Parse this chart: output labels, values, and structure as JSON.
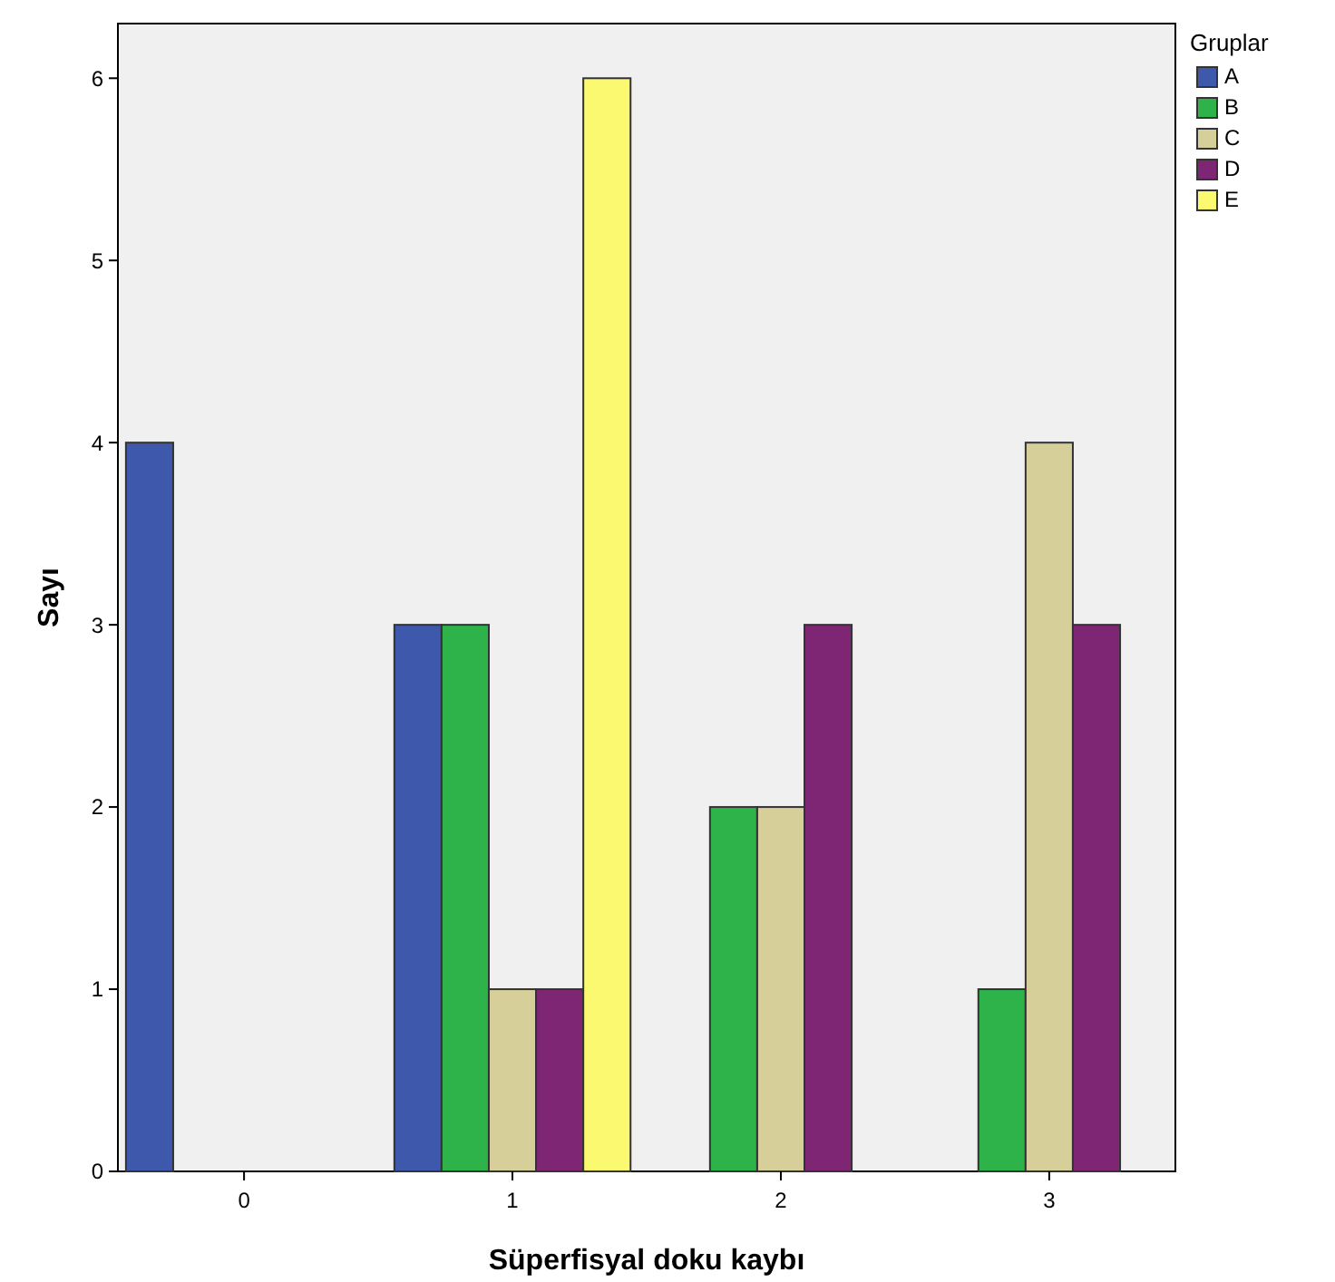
{
  "chart_data": {
    "type": "bar",
    "xlabel": "Süperfisyal doku kaybı",
    "ylabel": "Sayı",
    "legend_title": "Gruplar",
    "legend": "right",
    "categories": [
      "0",
      "1",
      "2",
      "3"
    ],
    "series": [
      {
        "name": "A",
        "color": "#3e58ac",
        "values": [
          4,
          3,
          null,
          null
        ]
      },
      {
        "name": "B",
        "color": "#2db34a",
        "values": [
          null,
          3,
          2,
          1
        ]
      },
      {
        "name": "C",
        "color": "#d6cf9a",
        "values": [
          null,
          1,
          2,
          4
        ]
      },
      {
        "name": "D",
        "color": "#7e2674",
        "values": [
          null,
          1,
          3,
          3
        ]
      },
      {
        "name": "E",
        "color": "#fbf96f",
        "values": [
          null,
          6,
          null,
          null
        ]
      }
    ],
    "ylim": [
      0,
      6.3
    ],
    "yticks": [
      0,
      1,
      2,
      3,
      4,
      5,
      6
    ],
    "grid": false
  }
}
